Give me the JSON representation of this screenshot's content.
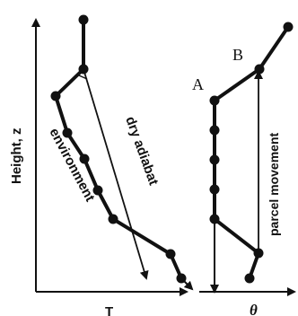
{
  "left_panel": {
    "y_axis_label": "Height, z",
    "x_axis_label": "T",
    "environment_label": "environment",
    "dry_adiabat_label": "dry adiabat"
  },
  "right_panel": {
    "x_axis_label": "θ",
    "point_a_label": "A",
    "point_b_label": "B",
    "parcel_label": "parcel movement"
  },
  "colors": {
    "ink": "#111111"
  }
}
